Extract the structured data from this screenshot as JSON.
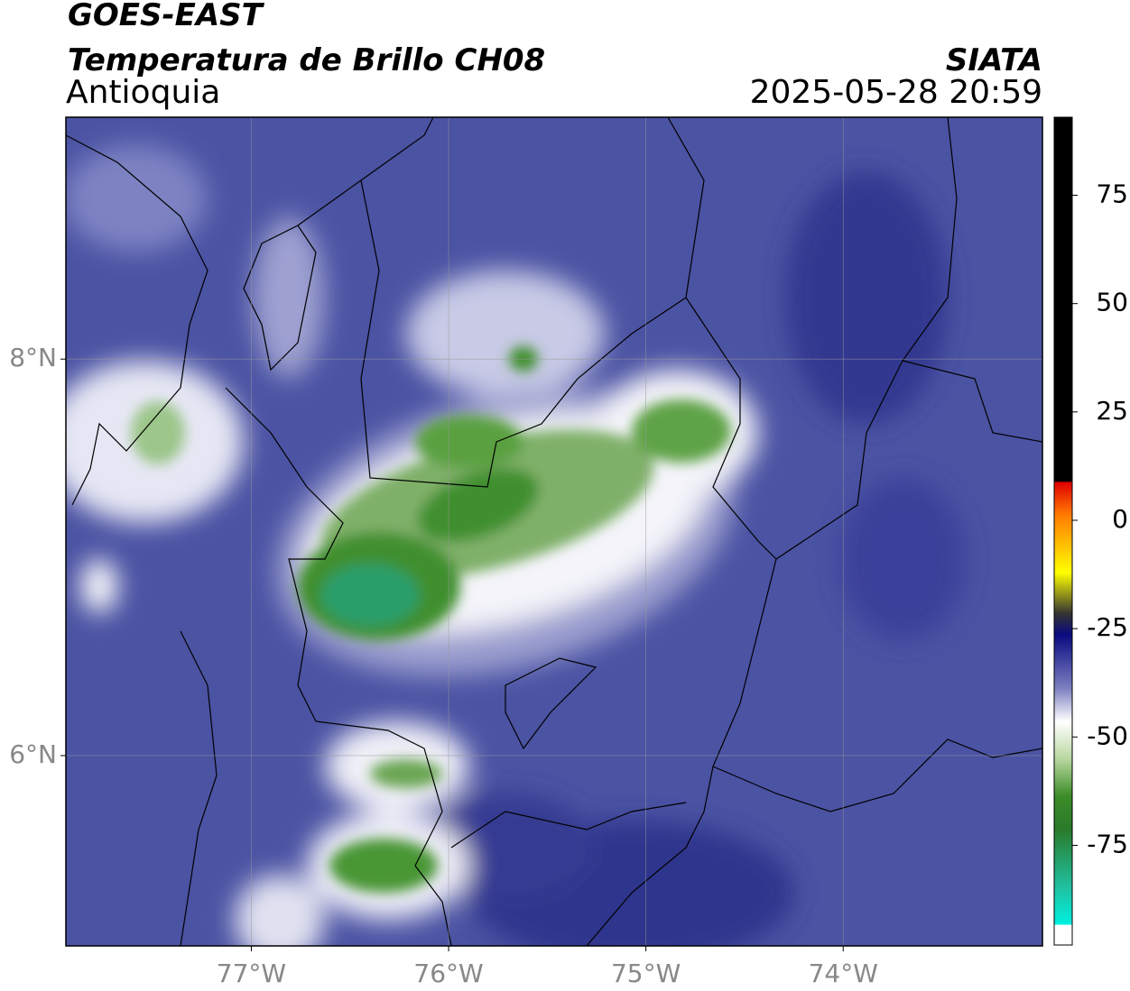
{
  "header": {
    "title": "GOES-EAST",
    "product": "Temperatura de Brillo CH08",
    "region": "Antioquia",
    "source": "SIATA",
    "timestamp": "2025-05-28 20:59"
  },
  "map": {
    "xlim": [
      -77.94,
      -72.99
    ],
    "ylim": [
      5.04,
      9.22
    ],
    "xticks": [
      {
        "value": -77,
        "label": "77°W"
      },
      {
        "value": -76,
        "label": "76°W"
      },
      {
        "value": -75,
        "label": "75°W"
      },
      {
        "value": -74,
        "label": "74°W"
      }
    ],
    "yticks": [
      {
        "value": 8,
        "label": "8°N"
      },
      {
        "value": 6,
        "label": "6°N"
      }
    ],
    "grid": true
  },
  "colorbar": {
    "lim": [
      -98,
      93
    ],
    "ticks": [
      75,
      50,
      25,
      0,
      -25,
      -50,
      -75
    ]
  }
}
